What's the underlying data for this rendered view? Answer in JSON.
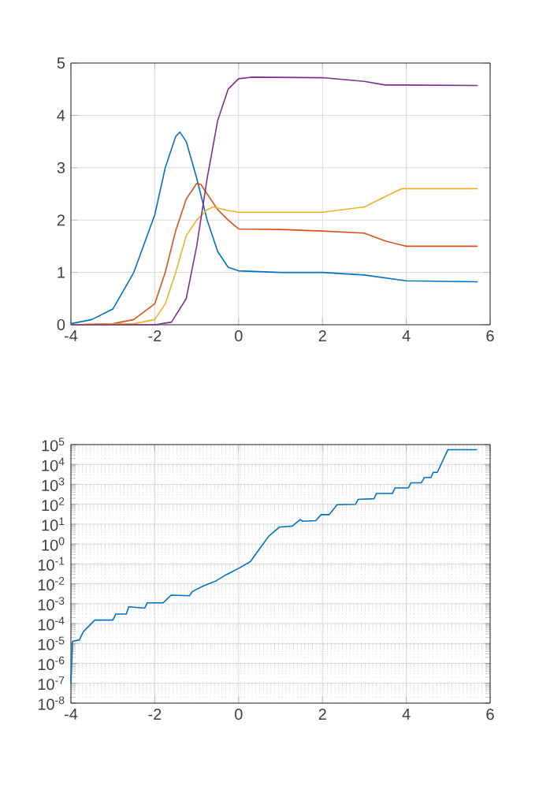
{
  "chart_data": [
    {
      "type": "line",
      "xlim": [
        -4,
        6
      ],
      "ylim": [
        0,
        5
      ],
      "xticks": [
        -4,
        -2,
        0,
        2,
        4,
        6
      ],
      "yticks": [
        0,
        1,
        2,
        3,
        4,
        5
      ],
      "grid": true,
      "marker": "none",
      "series": [
        {
          "color": "#0072bd",
          "x": [
            -4,
            -3.5,
            -3,
            -2.5,
            -2,
            -1.75,
            -1.5,
            -1.4,
            -1.25,
            -1,
            -0.75,
            -0.5,
            -0.25,
            0,
            1,
            2,
            3,
            4,
            5.7
          ],
          "values": [
            0.02,
            0.1,
            0.3,
            1.0,
            2.1,
            3.0,
            3.6,
            3.68,
            3.5,
            2.8,
            2.0,
            1.4,
            1.1,
            1.03,
            1.0,
            1.0,
            0.95,
            0.84,
            0.82
          ]
        },
        {
          "color": "#d95319",
          "x": [
            -4,
            -3,
            -2.5,
            -2,
            -1.75,
            -1.5,
            -1.25,
            -1,
            -0.9,
            -0.75,
            -0.5,
            -0.25,
            0,
            1,
            2,
            3,
            3.5,
            4,
            5.7
          ],
          "values": [
            0,
            0.02,
            0.1,
            0.4,
            1.0,
            1.8,
            2.4,
            2.7,
            2.68,
            2.5,
            2.2,
            2.0,
            1.83,
            1.82,
            1.79,
            1.75,
            1.6,
            1.5,
            1.5
          ]
        },
        {
          "color": "#edb120",
          "x": [
            -4,
            -2.5,
            -2,
            -1.75,
            -1.5,
            -1.25,
            -1,
            -0.75,
            -0.6,
            -0.25,
            0,
            1,
            2,
            3,
            3.5,
            3.9,
            5.7
          ],
          "values": [
            0,
            0.02,
            0.1,
            0.4,
            1.0,
            1.7,
            2.0,
            2.2,
            2.25,
            2.18,
            2.15,
            2.15,
            2.15,
            2.25,
            2.45,
            2.6,
            2.6
          ]
        },
        {
          "color": "#7e2f8e",
          "x": [
            -4,
            -2,
            -1.6,
            -1.25,
            -1,
            -0.75,
            -0.5,
            -0.25,
            0,
            0.3,
            2,
            3,
            3.5,
            4,
            5.7
          ],
          "values": [
            0,
            0,
            0.05,
            0.5,
            1.5,
            2.8,
            3.9,
            4.5,
            4.7,
            4.73,
            4.72,
            4.65,
            4.58,
            4.58,
            4.57
          ]
        }
      ]
    },
    {
      "type": "line",
      "log": "y",
      "xlim": [
        -4,
        6
      ],
      "ylim": [
        1e-08,
        100000.0
      ],
      "xticks": [
        -4,
        -2,
        0,
        2,
        4,
        6
      ],
      "yticks": [
        {
          "value": 1e-08,
          "label": "10$^{-8}$"
        },
        {
          "value": 1e-07,
          "label": "10$^{-7}$"
        },
        {
          "value": 1e-06,
          "label": "10$^{-6}$"
        },
        {
          "value": 1e-05,
          "label": "10$^{-5}$"
        },
        {
          "value": 0.0001,
          "label": "10$^{-4}$"
        },
        {
          "value": 0.001,
          "label": "10$^{-3}$"
        },
        {
          "value": 0.01,
          "label": "10$^{-2}$"
        },
        {
          "value": 0.1,
          "label": "10$^{-1}$"
        },
        {
          "value": 1,
          "label": "10$^{0}$"
        },
        {
          "value": 10,
          "label": "10$^{1}$"
        },
        {
          "value": 100,
          "label": "10$^{2}$"
        },
        {
          "value": 1000,
          "label": "10$^{3}$"
        },
        {
          "value": 10000,
          "label": "10$^{4}$"
        },
        {
          "value": 100000,
          "label": "10$^{5}$"
        }
      ],
      "grid": true,
      "marker": "none",
      "series": [
        {
          "color": "#0072bd",
          "x": [
            -4,
            -3.96,
            -3.8,
            -3.7,
            -3.43,
            -3.0,
            -2.93,
            -2.68,
            -2.62,
            -2.24,
            -2.18,
            -1.8,
            -1.61,
            -1.17,
            -1.11,
            -0.86,
            -0.54,
            -0.29,
            0.03,
            0.28,
            0.53,
            0.72,
            0.97,
            1.28,
            1.47,
            1.53,
            1.84,
            1.97,
            2.16,
            2.35,
            2.79,
            2.85,
            3.23,
            3.29,
            3.67,
            3.73,
            4.05,
            4.11,
            4.36,
            4.43,
            4.59,
            4.64,
            4.74,
            4.99,
            5.69
          ],
          "values": [
            1e-07,
            1.3e-05,
            1.5e-05,
            4e-05,
            0.00015,
            0.00015,
            0.0003,
            0.0003,
            0.0007,
            0.0006,
            0.0011,
            0.0011,
            0.0027,
            0.0025,
            0.004,
            0.0075,
            0.014,
            0.029,
            0.065,
            0.13,
            0.7,
            2.5,
            7,
            8,
            17,
            14,
            15,
            30,
            30,
            95,
            100,
            175,
            190,
            350,
            350,
            660,
            660,
            1200,
            1200,
            2200,
            2200,
            4000,
            4000,
            55000,
            55000
          ]
        }
      ]
    }
  ]
}
